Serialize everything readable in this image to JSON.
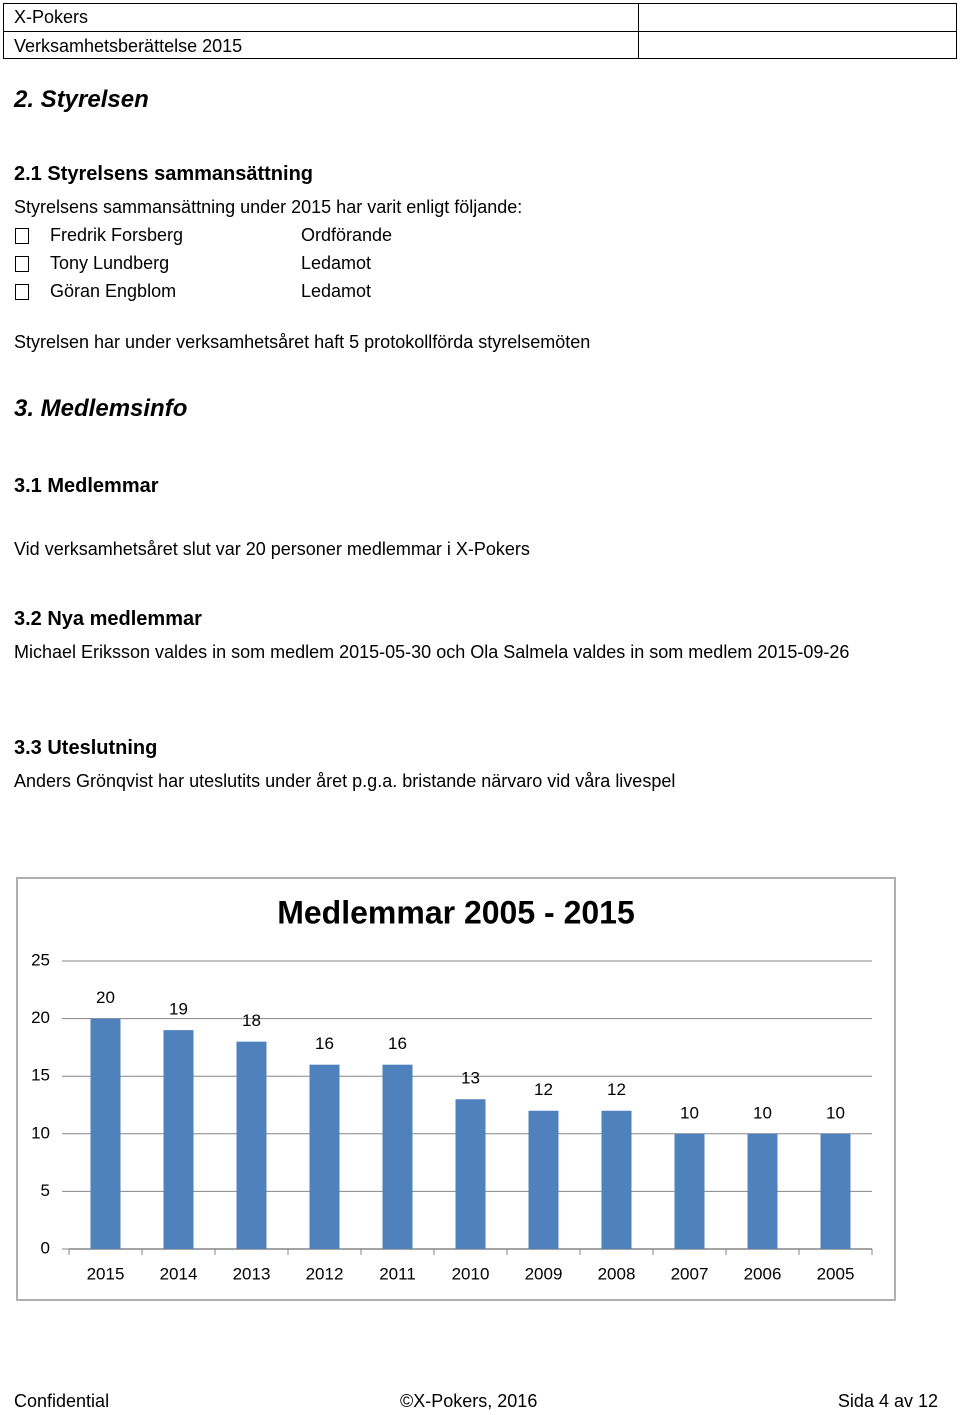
{
  "header": {
    "org": "X-Pokers",
    "document": "Verksamhetsberättelse 2015"
  },
  "section_2": {
    "title": "2.  Styrelsen",
    "sub_2_1": {
      "title": "2.1  Styrelsens sammansättning",
      "intro": "Styrelsens sammansättning under 2015 har varit enligt följande:",
      "members": [
        {
          "name": "Fredrik Forsberg",
          "role": "Ordförande"
        },
        {
          "name": "Tony Lundberg",
          "role": "Ledamot"
        },
        {
          "name": "Göran Engblom",
          "role": "Ledamot"
        }
      ],
      "meetings": "Styrelsen har under verksamhetsåret haft 5 protokollförda styrelsemöten"
    }
  },
  "section_3": {
    "title": "3.  Medlemsinfo",
    "sub_3_1": {
      "title": "3.1  Medlemmar",
      "text": "Vid verksamhetsåret slut var 20 personer medlemmar i X-Pokers"
    },
    "sub_3_2": {
      "title": "3.2  Nya medlemmar",
      "text": "Michael Eriksson valdes in som medlem 2015-05-30 och Ola Salmela valdes in som medlem 2015-09-26"
    },
    "sub_3_3": {
      "title": "3.3  Uteslutning",
      "text": "Anders Grönqvist har uteslutits under året p.g.a. bristande närvaro vid våra livespel"
    }
  },
  "chart_data": {
    "type": "bar",
    "title": "Medlemmar 2005 - 2015",
    "categories": [
      "2015",
      "2014",
      "2013",
      "2012",
      "2011",
      "2010",
      "2009",
      "2008",
      "2007",
      "2006",
      "2005"
    ],
    "values": [
      20,
      19,
      18,
      16,
      16,
      13,
      12,
      12,
      10,
      10,
      10
    ],
    "color": "#4f81bd",
    "ylim": [
      0,
      25
    ],
    "yticks": [
      0,
      5,
      10,
      15,
      20,
      25
    ],
    "grid": true
  },
  "footer": {
    "left": "Confidential",
    "center": "©X-Pokers, 2016",
    "right": "Sida 4 av 12"
  }
}
